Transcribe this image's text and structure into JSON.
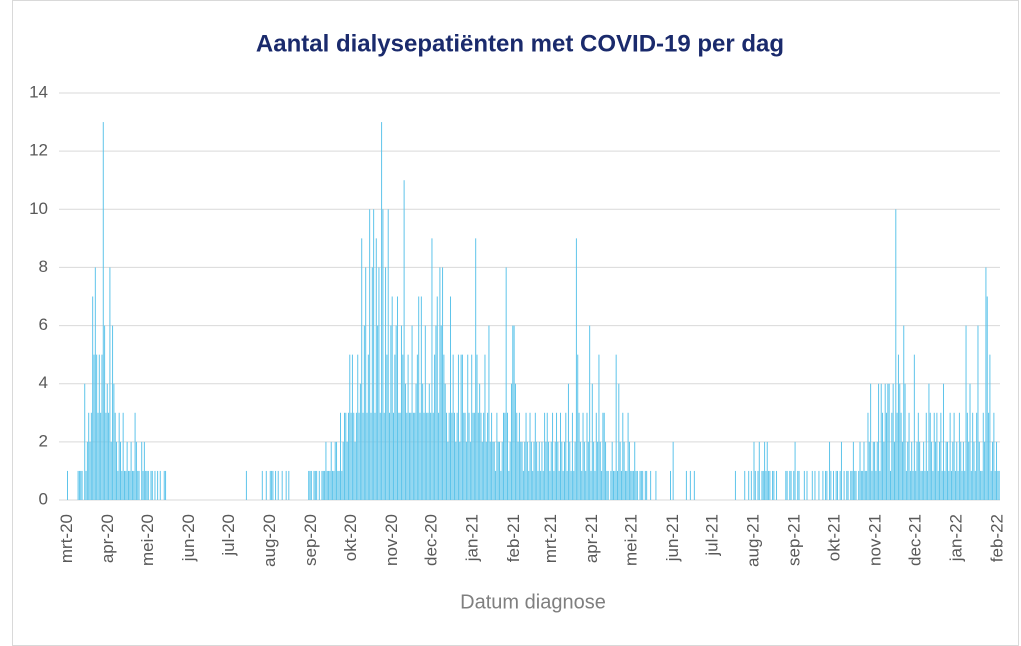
{
  "chart_data": {
    "type": "bar",
    "title": "Aantal dialysepatiënten met COVID-19 per dag",
    "x_label": "Datum diagnose",
    "color": "#5ec4ea",
    "ylim": [
      0,
      14
    ],
    "yticks": [
      0,
      2,
      4,
      6,
      8,
      10,
      12,
      14
    ],
    "grid": true,
    "categories": [
      "mrt-20",
      null,
      null,
      null,
      null,
      null,
      null,
      null,
      null,
      null,
      null,
      null,
      null,
      null,
      null,
      null,
      null,
      null,
      null,
      null,
      null,
      null,
      null,
      null,
      null,
      null,
      null,
      null,
      null,
      null,
      null,
      "apr-20",
      null,
      null,
      null,
      null,
      null,
      null,
      null,
      null,
      null,
      null,
      null,
      null,
      null,
      null,
      null,
      null,
      null,
      null,
      null,
      null,
      null,
      null,
      null,
      null,
      null,
      null,
      null,
      null,
      null,
      "mei-20",
      null,
      null,
      null,
      null,
      null,
      null,
      null,
      null,
      null,
      null,
      null,
      null,
      null,
      null,
      null,
      null,
      null,
      null,
      null,
      null,
      null,
      null,
      null,
      null,
      null,
      null,
      null,
      null,
      null,
      null,
      "jun-20",
      null,
      null,
      null,
      null,
      null,
      null,
      null,
      null,
      null,
      null,
      null,
      null,
      null,
      null,
      null,
      null,
      null,
      null,
      null,
      null,
      null,
      null,
      null,
      null,
      null,
      null,
      null,
      null,
      null,
      "jul-20",
      null,
      null,
      null,
      null,
      null,
      null,
      null,
      null,
      null,
      null,
      null,
      null,
      null,
      null,
      null,
      null,
      null,
      null,
      null,
      null,
      null,
      null,
      null,
      null,
      null,
      null,
      null,
      null,
      null,
      null,
      "aug-20",
      null,
      null,
      null,
      null,
      null,
      null,
      null,
      null,
      null,
      null,
      null,
      null,
      null,
      null,
      null,
      null,
      null,
      null,
      null,
      null,
      null,
      null,
      null,
      null,
      null,
      null,
      null,
      null,
      null,
      null,
      "sep-20",
      null,
      null,
      null,
      null,
      null,
      null,
      null,
      null,
      null,
      null,
      null,
      null,
      null,
      null,
      null,
      null,
      null,
      null,
      null,
      null,
      null,
      null,
      null,
      null,
      null,
      null,
      null,
      null,
      null,
      "okt-20",
      null,
      null,
      null,
      null,
      null,
      null,
      null,
      null,
      null,
      null,
      null,
      null,
      null,
      null,
      null,
      null,
      null,
      null,
      null,
      null,
      null,
      null,
      null,
      null,
      null,
      null,
      null,
      null,
      null,
      null,
      "nov-20",
      null,
      null,
      null,
      null,
      null,
      null,
      null,
      null,
      null,
      null,
      null,
      null,
      null,
      null,
      null,
      null,
      null,
      null,
      null,
      null,
      null,
      null,
      null,
      null,
      null,
      null,
      null,
      null,
      null,
      "dec-20",
      null,
      null,
      null,
      null,
      null,
      null,
      null,
      null,
      null,
      null,
      null,
      null,
      null,
      null,
      null,
      null,
      null,
      null,
      null,
      null,
      null,
      null,
      null,
      null,
      null,
      null,
      null,
      null,
      null,
      null,
      "jan-21",
      null,
      null,
      null,
      null,
      null,
      null,
      null,
      null,
      null,
      null,
      null,
      null,
      null,
      null,
      null,
      null,
      null,
      null,
      null,
      null,
      null,
      null,
      null,
      null,
      null,
      null,
      null,
      null,
      null,
      null,
      "feb-21",
      null,
      null,
      null,
      null,
      null,
      null,
      null,
      null,
      null,
      null,
      null,
      null,
      null,
      null,
      null,
      null,
      null,
      null,
      null,
      null,
      null,
      null,
      null,
      null,
      null,
      null,
      null,
      "mrt-21",
      null,
      null,
      null,
      null,
      null,
      null,
      null,
      null,
      null,
      null,
      null,
      null,
      null,
      null,
      null,
      null,
      null,
      null,
      null,
      null,
      null,
      null,
      null,
      null,
      null,
      null,
      null,
      null,
      null,
      null,
      "apr-21",
      null,
      null,
      null,
      null,
      null,
      null,
      null,
      null,
      null,
      null,
      null,
      null,
      null,
      null,
      null,
      null,
      null,
      null,
      null,
      null,
      null,
      null,
      null,
      null,
      null,
      null,
      null,
      null,
      null,
      "mei-21",
      null,
      null,
      null,
      null,
      null,
      null,
      null,
      null,
      null,
      null,
      null,
      null,
      null,
      null,
      null,
      null,
      null,
      null,
      null,
      null,
      null,
      null,
      null,
      null,
      null,
      null,
      null,
      null,
      null,
      null,
      "jun-21",
      null,
      null,
      null,
      null,
      null,
      null,
      null,
      null,
      null,
      null,
      null,
      null,
      null,
      null,
      null,
      null,
      null,
      null,
      null,
      null,
      null,
      null,
      null,
      null,
      null,
      null,
      null,
      null,
      null,
      "jul-21",
      null,
      null,
      null,
      null,
      null,
      null,
      null,
      null,
      null,
      null,
      null,
      null,
      null,
      null,
      null,
      null,
      null,
      null,
      null,
      null,
      null,
      null,
      null,
      null,
      null,
      null,
      null,
      null,
      null,
      null,
      "aug-21",
      null,
      null,
      null,
      null,
      null,
      null,
      null,
      null,
      null,
      null,
      null,
      null,
      null,
      null,
      null,
      null,
      null,
      null,
      null,
      null,
      null,
      null,
      null,
      null,
      null,
      null,
      null,
      null,
      null,
      null,
      "sep-21",
      null,
      null,
      null,
      null,
      null,
      null,
      null,
      null,
      null,
      null,
      null,
      null,
      null,
      null,
      null,
      null,
      null,
      null,
      null,
      null,
      null,
      null,
      null,
      null,
      null,
      null,
      null,
      null,
      null,
      "okt-21",
      null,
      null,
      null,
      null,
      null,
      null,
      null,
      null,
      null,
      null,
      null,
      null,
      null,
      null,
      null,
      null,
      null,
      null,
      null,
      null,
      null,
      null,
      null,
      null,
      null,
      null,
      null,
      null,
      null,
      null,
      "nov-21",
      null,
      null,
      null,
      null,
      null,
      null,
      null,
      null,
      null,
      null,
      null,
      null,
      null,
      null,
      null,
      null,
      null,
      null,
      null,
      null,
      null,
      null,
      null,
      null,
      null,
      null,
      null,
      null,
      null,
      "dec-21",
      null,
      null,
      null,
      null,
      null,
      null,
      null,
      null,
      null,
      null,
      null,
      null,
      null,
      null,
      null,
      null,
      null,
      null,
      null,
      null,
      null,
      null,
      null,
      null,
      null,
      null,
      null,
      null,
      null,
      null,
      "jan-22",
      null,
      null,
      null,
      null,
      null,
      null,
      null,
      null,
      null,
      null,
      null,
      null,
      null,
      null,
      null,
      null,
      null,
      null,
      null,
      null,
      null,
      null,
      null,
      null,
      null,
      null,
      null,
      null,
      null,
      null,
      "feb-22",
      null
    ],
    "values": [
      1,
      0,
      0,
      0,
      0,
      0,
      0,
      0,
      1,
      1,
      1,
      1,
      0,
      4,
      1,
      2,
      3,
      2,
      3,
      7,
      5,
      8,
      5,
      3,
      5,
      3,
      5,
      13,
      6,
      3,
      4,
      3,
      8,
      2,
      6,
      4,
      3,
      2,
      1,
      3,
      2,
      1,
      3,
      1,
      1,
      2,
      1,
      1,
      2,
      1,
      1,
      3,
      2,
      1,
      1,
      0,
      2,
      1,
      2,
      1,
      1,
      1,
      0,
      1,
      1,
      0,
      1,
      0,
      1,
      0,
      1,
      0,
      0,
      1,
      1,
      0,
      0,
      0,
      0,
      0,
      0,
      0,
      0,
      0,
      0,
      0,
      0,
      0,
      0,
      0,
      0,
      0,
      0,
      0,
      0,
      0,
      0,
      0,
      0,
      0,
      0,
      0,
      0,
      0,
      0,
      0,
      0,
      0,
      0,
      0,
      0,
      0,
      0,
      0,
      0,
      0,
      0,
      0,
      0,
      0,
      0,
      0,
      0,
      0,
      0,
      0,
      0,
      0,
      0,
      0,
      0,
      0,
      0,
      0,
      0,
      1,
      0,
      0,
      0,
      0,
      0,
      0,
      0,
      0,
      0,
      0,
      0,
      1,
      0,
      0,
      1,
      0,
      0,
      1,
      1,
      1,
      0,
      1,
      0,
      1,
      0,
      0,
      1,
      0,
      0,
      1,
      0,
      1,
      0,
      0,
      0,
      0,
      0,
      0,
      0,
      0,
      0,
      0,
      0,
      0,
      0,
      0,
      1,
      1,
      1,
      0,
      1,
      1,
      1,
      0,
      1,
      0,
      1,
      1,
      1,
      2,
      1,
      1,
      1,
      2,
      1,
      1,
      2,
      2,
      1,
      1,
      3,
      1,
      2,
      3,
      3,
      2,
      3,
      5,
      3,
      5,
      3,
      2,
      3,
      5,
      3,
      4,
      9,
      3,
      6,
      8,
      3,
      5,
      10,
      3,
      8,
      10,
      3,
      9,
      6,
      8,
      3,
      13,
      10,
      3,
      8,
      5,
      10,
      3,
      6,
      7,
      3,
      5,
      6,
      7,
      3,
      3,
      6,
      5,
      11,
      4,
      3,
      5,
      3,
      3,
      6,
      3,
      3,
      4,
      5,
      7,
      3,
      7,
      4,
      3,
      6,
      3,
      3,
      4,
      3,
      9,
      3,
      5,
      6,
      7,
      3,
      8,
      6,
      8,
      5,
      4,
      3,
      2,
      3,
      7,
      3,
      5,
      3,
      2,
      3,
      5,
      2,
      5,
      5,
      3,
      3,
      2,
      5,
      3,
      2,
      5,
      3,
      3,
      9,
      5,
      3,
      4,
      3,
      2,
      3,
      5,
      2,
      3,
      6,
      2,
      3,
      2,
      2,
      1,
      3,
      2,
      2,
      1,
      2,
      3,
      3,
      8,
      3,
      1,
      2,
      4,
      6,
      6,
      4,
      3,
      2,
      3,
      2,
      2,
      1,
      2,
      3,
      2,
      1,
      3,
      2,
      1,
      2,
      3,
      2,
      1,
      2,
      1,
      2,
      1,
      3,
      2,
      3,
      2,
      1,
      2,
      3,
      1,
      2,
      3,
      2,
      1,
      3,
      2,
      1,
      2,
      3,
      1,
      4,
      2,
      1,
      3,
      1,
      2,
      9,
      5,
      3,
      2,
      1,
      3,
      2,
      1,
      3,
      2,
      6,
      1,
      4,
      2,
      1,
      3,
      2,
      5,
      2,
      1,
      3,
      3,
      2,
      1,
      1,
      0,
      1,
      2,
      1,
      1,
      5,
      1,
      4,
      2,
      1,
      3,
      2,
      1,
      1,
      3,
      2,
      1,
      1,
      1,
      2,
      1,
      1,
      0,
      1,
      1,
      1,
      0,
      1,
      1,
      0,
      0,
      1,
      0,
      0,
      0,
      1,
      0,
      0,
      0,
      0,
      0,
      0,
      0,
      0,
      0,
      0,
      1,
      0,
      2,
      0,
      0,
      0,
      0,
      0,
      0,
      0,
      0,
      0,
      1,
      0,
      0,
      1,
      0,
      0,
      1,
      0,
      0,
      0,
      0,
      0,
      0,
      0,
      0,
      0,
      0,
      0,
      0,
      0,
      0,
      0,
      0,
      0,
      0,
      0,
      0,
      0,
      0,
      0,
      0,
      0,
      0,
      0,
      0,
      0,
      0,
      1,
      0,
      0,
      0,
      0,
      0,
      0,
      1,
      0,
      0,
      1,
      0,
      1,
      0,
      2,
      1,
      0,
      1,
      2,
      0,
      1,
      1,
      2,
      1,
      2,
      1,
      1,
      0,
      1,
      1,
      0,
      1,
      0,
      0,
      0,
      0,
      0,
      0,
      1,
      1,
      0,
      1,
      1,
      0,
      1,
      2,
      0,
      1,
      1,
      0,
      0,
      0,
      1,
      0,
      1,
      0,
      0,
      0,
      1,
      0,
      1,
      0,
      0,
      1,
      0,
      0,
      1,
      0,
      1,
      1,
      0,
      2,
      1,
      0,
      1,
      0,
      1,
      1,
      0,
      1,
      2,
      0,
      1,
      0,
      1,
      1,
      0,
      1,
      1,
      2,
      1,
      1,
      0,
      1,
      2,
      1,
      1,
      2,
      1,
      1,
      3,
      2,
      4,
      1,
      2,
      2,
      1,
      2,
      4,
      1,
      4,
      3,
      2,
      4,
      3,
      4,
      4,
      1,
      3,
      4,
      2,
      10,
      3,
      5,
      4,
      3,
      2,
      6,
      4,
      1,
      2,
      3,
      1,
      2,
      1,
      5,
      1,
      2,
      3,
      2,
      1,
      1,
      2,
      1,
      3,
      1,
      4,
      3,
      2,
      1,
      3,
      2,
      3,
      1,
      2,
      3,
      1,
      4,
      1,
      2,
      2,
      1,
      3,
      1,
      2,
      3,
      1,
      2,
      1,
      3,
      2,
      1,
      2,
      1,
      6,
      3,
      2,
      4,
      1,
      3,
      2,
      1,
      3,
      6,
      2,
      1,
      1,
      3,
      2,
      8,
      7,
      3,
      5,
      1,
      2,
      3,
      1,
      2,
      1,
      1
    ]
  }
}
